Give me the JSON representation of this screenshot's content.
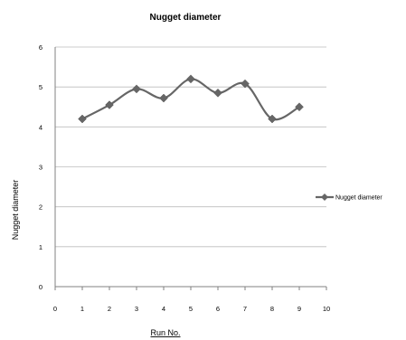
{
  "chart_data": {
    "type": "line",
    "title": "Nugget diameter",
    "xlabel": "Run No.",
    "ylabel": "Nugget diameter",
    "x": [
      1,
      2,
      3,
      4,
      5,
      6,
      7,
      8,
      9
    ],
    "series": [
      {
        "name": "Nugget diameter",
        "values": [
          4.2,
          4.55,
          4.95,
          4.72,
          5.2,
          4.85,
          5.08,
          4.2,
          4.5
        ]
      }
    ],
    "xlim": [
      0,
      10
    ],
    "ylim": [
      0,
      6
    ],
    "xticks": [
      "0",
      "1",
      "2",
      "3",
      "4",
      "5",
      "6",
      "7",
      "8",
      "9",
      "10"
    ],
    "yticks": [
      "0",
      "1",
      "2",
      "3",
      "4",
      "5",
      "6"
    ],
    "grid": "horizontal",
    "legend_position": "right",
    "line_color": "#666666",
    "marker": "diamond"
  }
}
